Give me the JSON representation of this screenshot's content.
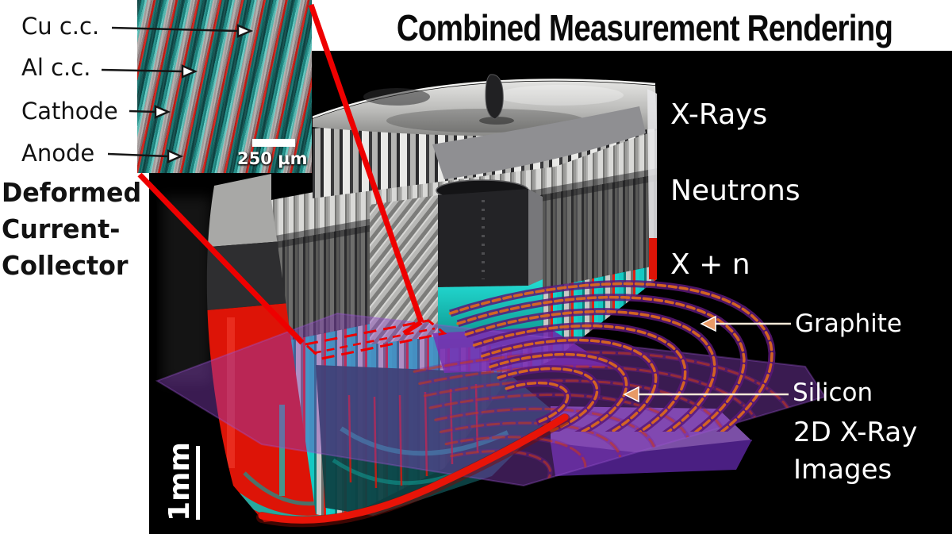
{
  "title": "Combined Measurement Rendering",
  "inset": {
    "labels": {
      "cu": "Cu c.c.",
      "al": "Al c.c.",
      "cathode": "Cathode",
      "anode": "Anode"
    },
    "scale_bar_label": "250 µm"
  },
  "deformed_label": {
    "line1": "Deformed",
    "line2": "Current-",
    "line3": "Collector"
  },
  "modalities": {
    "xray": "X-Rays",
    "neutron": "Neutrons",
    "combined": "X + n"
  },
  "annotations": {
    "graphite": "Graphite",
    "silicon": "Silicon"
  },
  "caption": {
    "line1": "2D X-Ray",
    "line2": "Images"
  },
  "scale_bar_label": "1mm",
  "colors": {
    "background": "#000000",
    "anode_cyan": "#14c9c2",
    "cathode_red": "#e01a0e",
    "plane_purple": "#8a40c0",
    "ring_orange": "#dd6a1c",
    "callout_red": "#ee0000"
  }
}
